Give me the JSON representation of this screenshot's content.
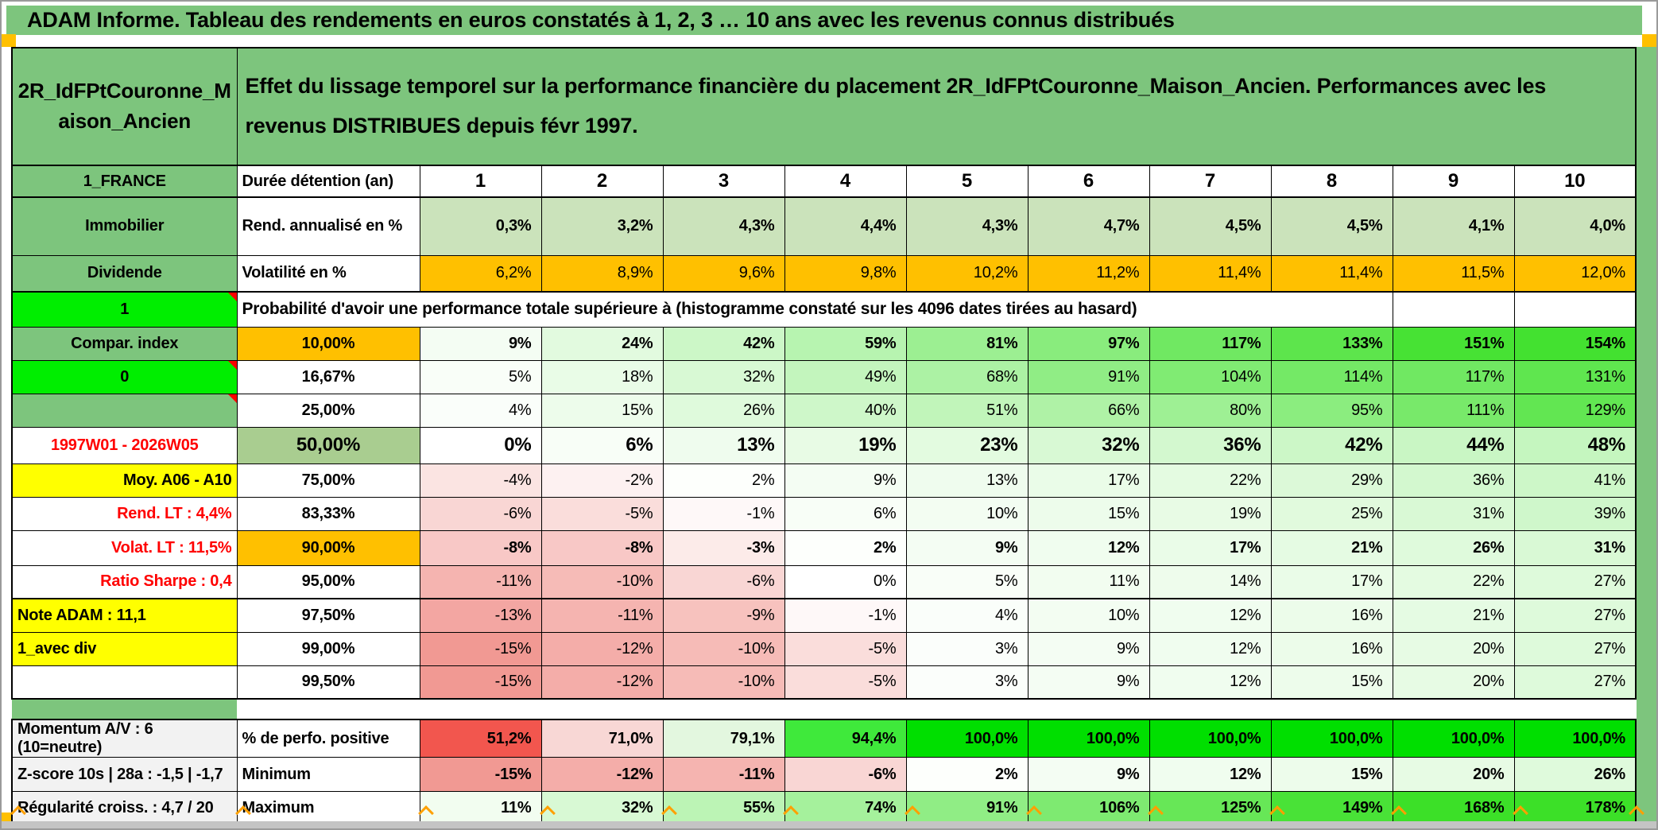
{
  "title": "ADAM Informe. Tableau des rendements en euros constatés à 1, 2, 3 … 10 ans avec les revenus connus distribués",
  "colors": {
    "header_green": "#7DC57D",
    "bright_green": "#00EE00",
    "sage_green": "#A9CD90",
    "orange": "#FFC000",
    "yellow": "#FFFF00",
    "label_gray": "#F2F2F2",
    "red_text": "#FF0000",
    "annualized_cell_bg": "#CBE3BB",
    "volatility_cell_bg": "#FFC000"
  },
  "table": {
    "name_cell": "2R_IdFPtCouronne_Maison_Ancien",
    "description": "Effet du lissage temporel sur la performance financière du placement 2R_IdFPtCouronne_Maison_Ancien. Performances avec les revenus DISTRIBUES depuis févr 1997.",
    "region_cell": "1_FRANCE",
    "duration_label": "Durée détention (an)",
    "columns": [
      "1",
      "2",
      "3",
      "4",
      "5",
      "6",
      "7",
      "8",
      "9",
      "10"
    ],
    "rows_top": [
      {
        "a": "Immobilier",
        "b": "Rend. annualisé en %",
        "values": [
          "0,3%",
          "3,2%",
          "4,3%",
          "4,4%",
          "4,3%",
          "4,7%",
          "4,5%",
          "4,5%",
          "4,1%",
          "4,0%"
        ],
        "cell_bg": "#CBE3BB",
        "values_bold": true
      },
      {
        "a": "Dividende",
        "b": "Volatilité en %",
        "values": [
          "6,2%",
          "8,9%",
          "9,6%",
          "9,8%",
          "10,2%",
          "11,2%",
          "11,4%",
          "11,4%",
          "11,5%",
          "12,0%"
        ],
        "cell_bg": "#FFC000",
        "values_bold": false
      }
    ],
    "probability_header": {
      "a": "1",
      "text": "Probabilité d'avoir une performance totale supérieure à (histogramme constaté sur les 4096 dates tirées au hasard)"
    },
    "probability_rows": [
      {
        "a": "Compar. index",
        "a_cls": "green center bold",
        "b": "10,00%",
        "b_cls": "orange center bold",
        "values_bold": true,
        "values": [
          "9%",
          "24%",
          "42%",
          "59%",
          "81%",
          "97%",
          "117%",
          "133%",
          "151%",
          "154%"
        ],
        "colors": [
          "#F4FDF3",
          "#E2FADF",
          "#CCF7C7",
          "#B7F4B0",
          "#9CEF92",
          "#89EC7D",
          "#70E862",
          "#5DE54C",
          "#47E234",
          "#43E130"
        ]
      },
      {
        "a": "0",
        "a_cls": "bgreen center bold corner",
        "b": "16,67%",
        "b_cls": "center bold",
        "values_bold": false,
        "values": [
          "5%",
          "18%",
          "32%",
          "49%",
          "68%",
          "91%",
          "104%",
          "114%",
          "117%",
          "131%"
        ],
        "colors": [
          "#F9FEF8",
          "#E9FCE7",
          "#D8F9D4",
          "#C3F5BD",
          "#ACF2A4",
          "#90ED85",
          "#80EB73",
          "#74E966",
          "#70E862",
          "#5FE64F"
        ]
      },
      {
        "a": "",
        "a_cls": "green corner",
        "b": "25,00%",
        "b_cls": "center bold",
        "values_bold": false,
        "values": [
          "4%",
          "15%",
          "26%",
          "40%",
          "51%",
          "66%",
          "80%",
          "95%",
          "111%",
          "129%"
        ],
        "colors": [
          "#FAFEFA",
          "#EDFCEB",
          "#DFFADC",
          "#CEF7C9",
          "#C1F5BA",
          "#AFF2A6",
          "#9EF094",
          "#8BED7F",
          "#78E96A",
          "#62E652"
        ]
      },
      {
        "a": "1997W01 - 2026W05",
        "a_cls": "center redtext bold",
        "b": "50,00%",
        "b_cls": "sage center bold big",
        "values_bold": true,
        "values_big": true,
        "values": [
          "0%",
          "6%",
          "13%",
          "19%",
          "23%",
          "32%",
          "36%",
          "42%",
          "44%",
          "48%"
        ],
        "colors": [
          "#FFFFFF",
          "#F8FEF7",
          "#EFFCEE",
          "#E8FBE5",
          "#E3FBE0",
          "#D8F9D4",
          "#D3F8CF",
          "#CCF7C7",
          "#C9F6C4",
          "#C5F6BF"
        ]
      },
      {
        "a": "Moy. A06 - A10",
        "a_cls": "yellow right bold",
        "b": "75,00%",
        "b_cls": "center bold",
        "values_bold": false,
        "values": [
          "-4%",
          "-2%",
          "2%",
          "9%",
          "13%",
          "17%",
          "22%",
          "29%",
          "36%",
          "41%"
        ],
        "colors": [
          "#FBE4E2",
          "#FDF1F1",
          "#FDFFFC",
          "#F4FDF3",
          "#EFFCEE",
          "#EAFCE8",
          "#E4FBE1",
          "#DCF9D8",
          "#D3F8CF",
          "#CDF7C8"
        ]
      },
      {
        "a": "Rend. LT :   4,4%",
        "a_cls": "right redtext bold",
        "b": "83,33%",
        "b_cls": "center bold",
        "values_bold": false,
        "values": [
          "-6%",
          "-5%",
          "-1%",
          "6%",
          "10%",
          "15%",
          "19%",
          "25%",
          "31%",
          "39%"
        ],
        "colors": [
          "#F9D6D4",
          "#FADDDB",
          "#FEF8F8",
          "#F8FEF7",
          "#F3FDF2",
          "#EDFCEB",
          "#E8FBE5",
          "#E1FADD",
          "#D9F9D5",
          "#CFF7CB"
        ]
      },
      {
        "a": "Volat. LT :   11,5%",
        "a_cls": "right redtext bold",
        "b": "90,00%",
        "b_cls": "orange center bold",
        "values_bold": true,
        "values": [
          "-8%",
          "-8%",
          "-3%",
          "2%",
          "9%",
          "12%",
          "17%",
          "21%",
          "26%",
          "31%"
        ],
        "colors": [
          "#F8C8C6",
          "#F8C8C6",
          "#FCEBE9",
          "#FDFFFC",
          "#F4FDF3",
          "#F0FDEF",
          "#EAFCE8",
          "#E5FBE3",
          "#DFFADC",
          "#D9F9D5"
        ]
      },
      {
        "a": "Ratio Sharpe :   0,4",
        "a_cls": "right redtext bold",
        "b": "95,00%",
        "b_cls": "center bold",
        "values_bold": false,
        "values": [
          "-11%",
          "-10%",
          "-6%",
          "0%",
          "5%",
          "11%",
          "14%",
          "17%",
          "22%",
          "27%"
        ],
        "colors": [
          "#F5B4B0",
          "#F6BBB7",
          "#F9D6D4",
          "#FFFFFF",
          "#F9FEF8",
          "#F2FDF0",
          "#EEFCEC",
          "#EAFCE8",
          "#E4FBE1",
          "#DEFADB"
        ]
      },
      {
        "a": "Note ADAM : 11,1",
        "a_cls": "yellow left bold",
        "b": "97,50%",
        "b_cls": "center bold",
        "values_bold": false,
        "thick_top": true,
        "values": [
          "-13%",
          "-11%",
          "-9%",
          "-1%",
          "4%",
          "10%",
          "12%",
          "16%",
          "21%",
          "27%"
        ],
        "colors": [
          "#F3A6A2",
          "#F5B4B0",
          "#F7C2BE",
          "#FEF8F8",
          "#FAFEFA",
          "#F3FDF2",
          "#F0FDEF",
          "#ECFCEA",
          "#E5FBE3",
          "#DEFADB"
        ]
      },
      {
        "a": "1_avec div",
        "a_cls": "yellow left bold",
        "b": "99,00%",
        "b_cls": "center bold",
        "values_bold": false,
        "values": [
          "-15%",
          "-12%",
          "-10%",
          "-5%",
          "3%",
          "9%",
          "12%",
          "16%",
          "20%",
          "27%"
        ],
        "colors": [
          "#F19993",
          "#F4ADA9",
          "#F6BBB7",
          "#FADDDB",
          "#FBFEFB",
          "#F4FDF3",
          "#F0FDEF",
          "#ECFCEA",
          "#E7FBE4",
          "#DEFADB"
        ]
      },
      {
        "a": "",
        "a_cls": "",
        "b": "99,50%",
        "b_cls": "center bold",
        "values_bold": false,
        "values": [
          "-15%",
          "-12%",
          "-10%",
          "-5%",
          "3%",
          "9%",
          "12%",
          "15%",
          "20%",
          "27%"
        ],
        "colors": [
          "#F19993",
          "#F4ADA9",
          "#F6BBB7",
          "#FADDDB",
          "#FBFEFB",
          "#F4FDF3",
          "#F0FDEF",
          "#EDFCEB",
          "#E7FBE4",
          "#DEFADB"
        ]
      }
    ],
    "summary_rows": [
      {
        "a": "Momentum A/V : 6 (10=neutre)",
        "b": "% de perfo. positive",
        "values": [
          "51,2%",
          "71,0%",
          "79,1%",
          "94,4%",
          "100,0%",
          "100,0%",
          "100,0%",
          "100,0%",
          "100,0%",
          "100,0%"
        ],
        "colors": [
          "#F2564E",
          "#F8D7D5",
          "#E3F7DF",
          "#3FE93B",
          "#00DF00",
          "#00DF00",
          "#00DF00",
          "#00DF00",
          "#00DF00",
          "#00DF00"
        ]
      },
      {
        "a": "Z-score 10s | 28a : -1,5 | -1,7",
        "b": "Minimum",
        "values": [
          "-15%",
          "-12%",
          "-11%",
          "-6%",
          "2%",
          "9%",
          "12%",
          "15%",
          "20%",
          "26%"
        ],
        "colors": [
          "#F19993",
          "#F4ADA9",
          "#F5B4B0",
          "#F9D6D4",
          "#FDFFFC",
          "#F4FDF3",
          "#F0FDEF",
          "#EDFCEB",
          "#E7FBE4",
          "#DFFADC"
        ]
      },
      {
        "a": "Régularité croiss. : 4,7 / 20",
        "b": "Maximum",
        "values": [
          "11%",
          "32%",
          "55%",
          "74%",
          "91%",
          "106%",
          "125%",
          "149%",
          "168%",
          "178%"
        ],
        "colors": [
          "#F2FDF0",
          "#D8F9D4",
          "#BCF4B5",
          "#A5F19C",
          "#90ED85",
          "#7EEA71",
          "#67E757",
          "#49E237",
          "#3CE028",
          "#3CE028"
        ]
      }
    ]
  }
}
